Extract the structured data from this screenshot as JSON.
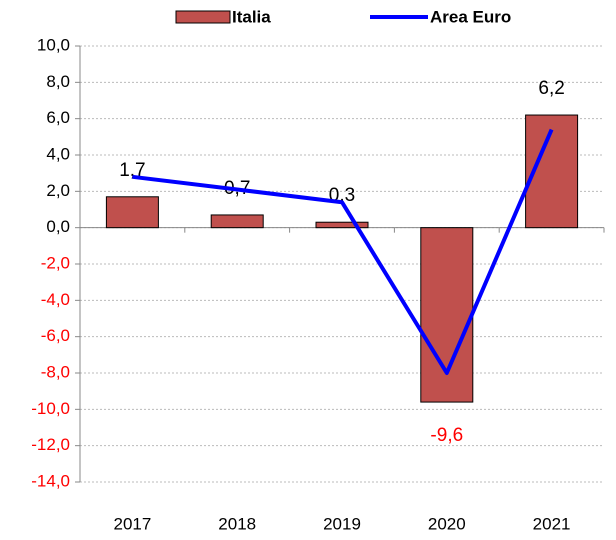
{
  "chart_data": {
    "type": "bar",
    "categories": [
      "2017",
      "2018",
      "2019",
      "2020",
      "2021"
    ],
    "series": [
      {
        "name": "Italia",
        "type": "bar",
        "color": "#c0504d",
        "values": [
          1.7,
          0.7,
          0.3,
          -9.6,
          6.2
        ],
        "value_labels": [
          "1,7",
          "0,7",
          "0,3",
          "-9,6",
          "6,2"
        ]
      },
      {
        "name": "Area Euro",
        "type": "line",
        "color": "#0000ff",
        "values": [
          2.8,
          2.1,
          1.4,
          -8.0,
          5.4
        ]
      }
    ],
    "ylim": [
      -14,
      10
    ],
    "yticks": [
      {
        "value": -14,
        "label": "-14,0"
      },
      {
        "value": -12,
        "label": "-12,0"
      },
      {
        "value": -10,
        "label": "-10,0"
      },
      {
        "value": -8,
        "label": "-8,0"
      },
      {
        "value": -6,
        "label": "-6,0"
      },
      {
        "value": -4,
        "label": "-4,0"
      },
      {
        "value": -2,
        "label": "-2,0"
      },
      {
        "value": 0,
        "label": "0,0"
      },
      {
        "value": 2,
        "label": "2,0"
      },
      {
        "value": 4,
        "label": "4,0"
      },
      {
        "value": 6,
        "label": "6,0"
      },
      {
        "value": 8,
        "label": "8,0"
      },
      {
        "value": 10,
        "label": "10,0"
      }
    ],
    "grid": true,
    "negative_color": "#ff0000",
    "legend": "top"
  }
}
